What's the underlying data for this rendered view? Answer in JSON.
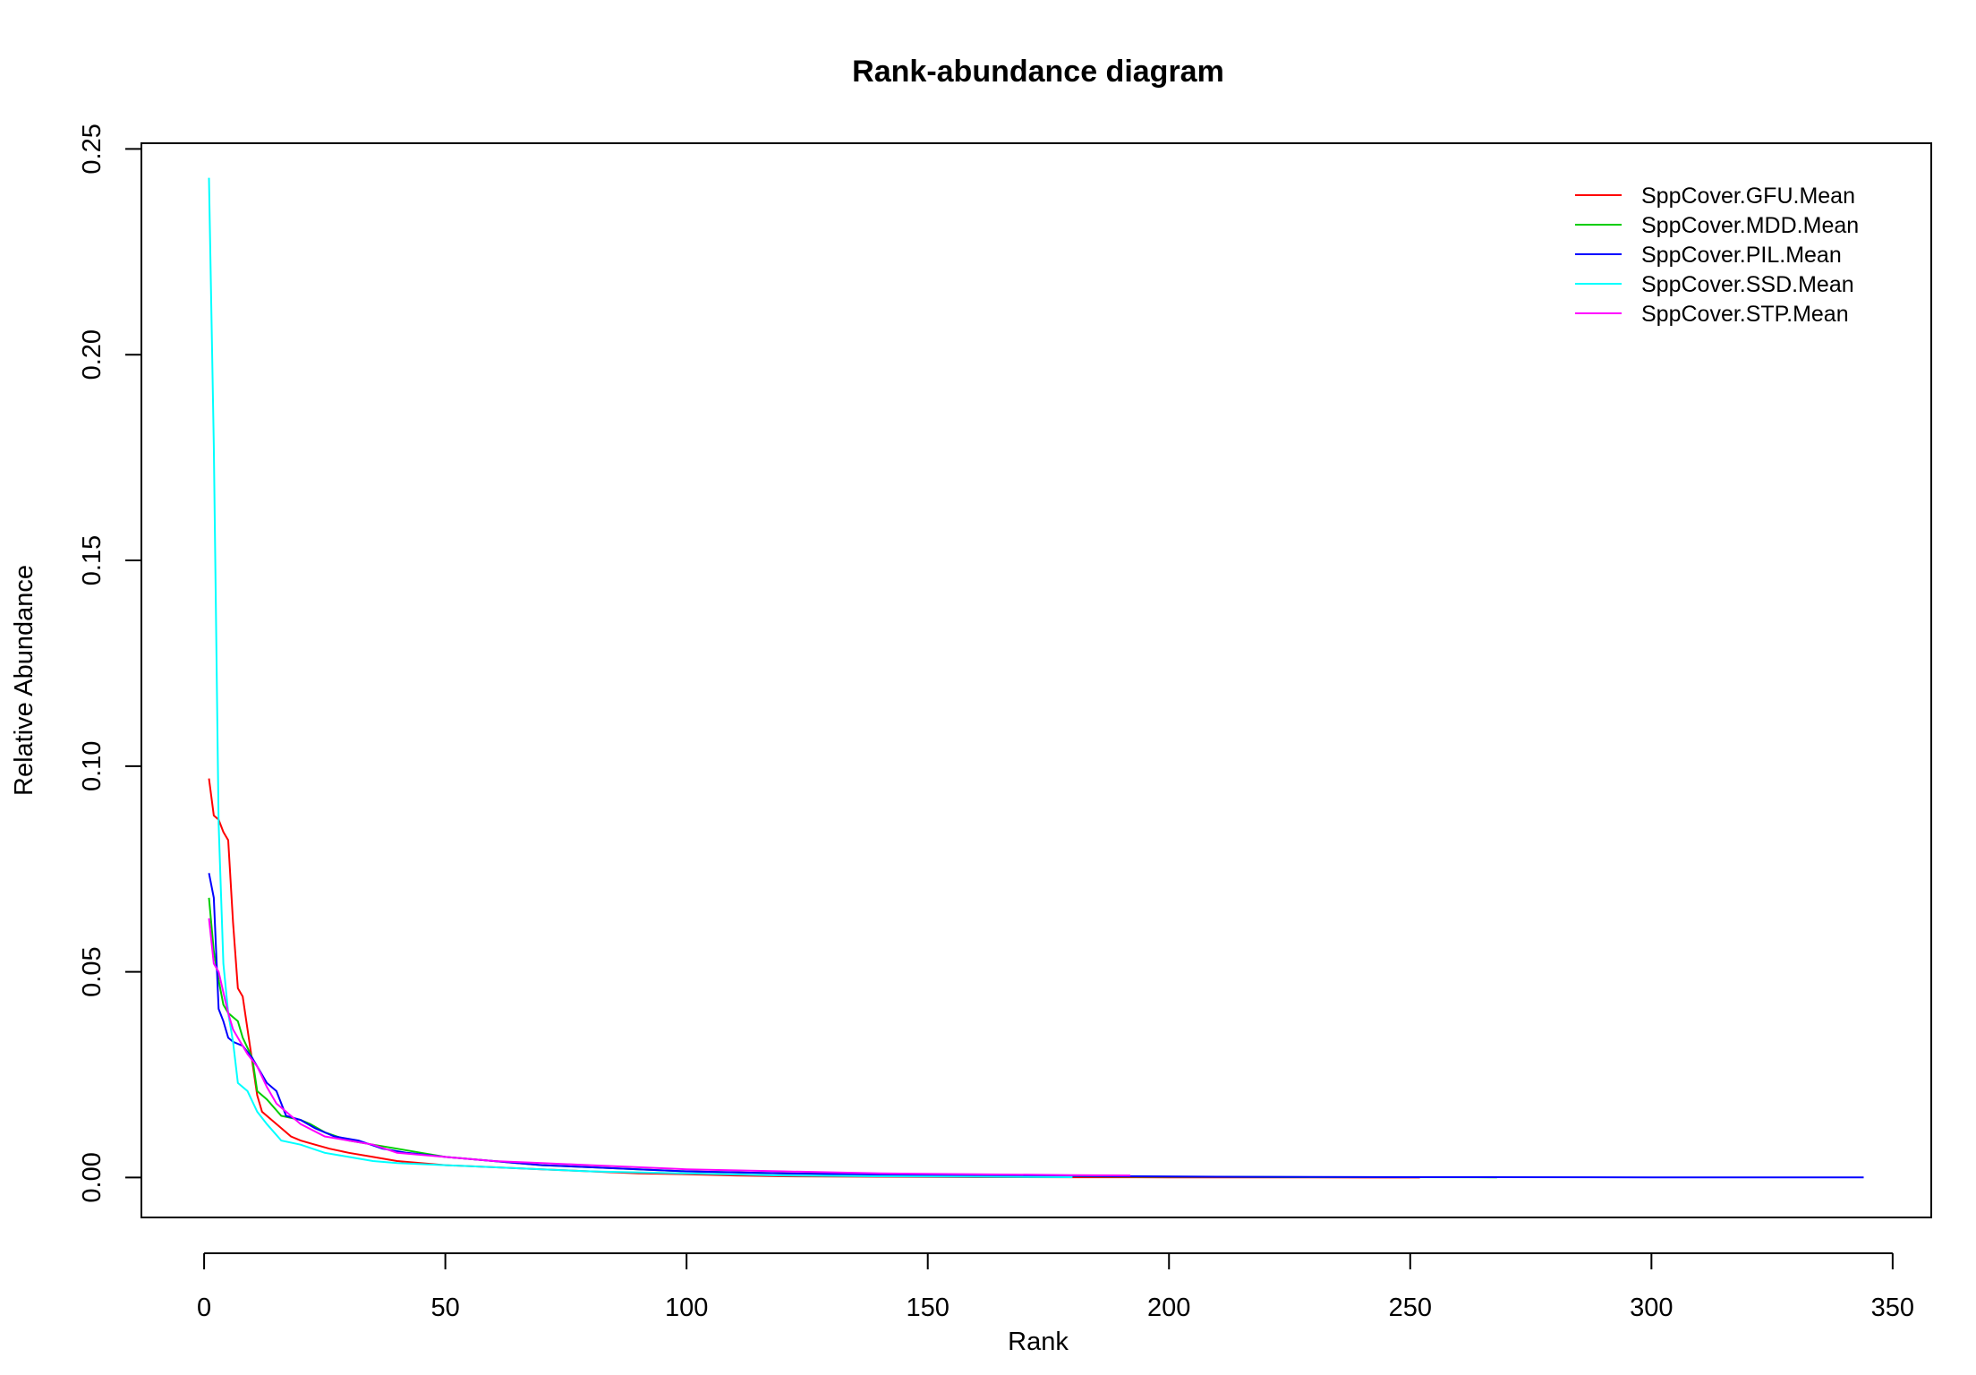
{
  "chart_data": {
    "type": "line",
    "title": "Rank-abundance diagram",
    "xlabel": "Rank",
    "ylabel": "Relative Abundance",
    "xlim": [
      -13,
      358
    ],
    "ylim": [
      -0.0097,
      0.2514
    ],
    "x_ticks": [
      "0",
      "50",
      "100",
      "150",
      "200",
      "250",
      "300",
      "350"
    ],
    "y_ticks": [
      "0.00",
      "0.05",
      "0.10",
      "0.15",
      "0.20",
      "0.25"
    ],
    "grid": false,
    "legend_position": "top-right",
    "series": [
      {
        "name": "SppCover.GFU.Mean",
        "color": "#ff0000",
        "points": [
          [
            1,
            0.097
          ],
          [
            2,
            0.088
          ],
          [
            3,
            0.087
          ],
          [
            4,
            0.084
          ],
          [
            5,
            0.082
          ],
          [
            6,
            0.062
          ],
          [
            7,
            0.046
          ],
          [
            8,
            0.044
          ],
          [
            9,
            0.036
          ],
          [
            10,
            0.028
          ],
          [
            11,
            0.02
          ],
          [
            12,
            0.016
          ],
          [
            14,
            0.014
          ],
          [
            16,
            0.012
          ],
          [
            18,
            0.01
          ],
          [
            20,
            0.009
          ],
          [
            23,
            0.008
          ],
          [
            26,
            0.007
          ],
          [
            30,
            0.006
          ],
          [
            35,
            0.005
          ],
          [
            40,
            0.004
          ],
          [
            50,
            0.003
          ],
          [
            60,
            0.0025
          ],
          [
            70,
            0.002
          ],
          [
            80,
            0.0015
          ],
          [
            90,
            0.001
          ],
          [
            100,
            0.0008
          ],
          [
            110,
            0.0005
          ],
          [
            120,
            0.0003
          ],
          [
            140,
            0.0002
          ],
          [
            160,
            0.0001
          ],
          [
            180,
            8e-05
          ],
          [
            200,
            5e-05
          ],
          [
            230,
            2e-05
          ],
          [
            252,
            1e-05
          ]
        ]
      },
      {
        "name": "SppCover.MDD.Mean",
        "color": "#00cd00",
        "points": [
          [
            1,
            0.068
          ],
          [
            2,
            0.055
          ],
          [
            3,
            0.048
          ],
          [
            4,
            0.042
          ],
          [
            5,
            0.04
          ],
          [
            6,
            0.039
          ],
          [
            7,
            0.038
          ],
          [
            8,
            0.034
          ],
          [
            10,
            0.029
          ],
          [
            11,
            0.021
          ],
          [
            13,
            0.019
          ],
          [
            16,
            0.015
          ],
          [
            20,
            0.014
          ],
          [
            22,
            0.013
          ],
          [
            25,
            0.011
          ],
          [
            30,
            0.009
          ],
          [
            35,
            0.008
          ],
          [
            40,
            0.007
          ],
          [
            45,
            0.006
          ],
          [
            50,
            0.005
          ],
          [
            60,
            0.004
          ],
          [
            70,
            0.003
          ],
          [
            80,
            0.0025
          ],
          [
            90,
            0.002
          ],
          [
            100,
            0.0015
          ],
          [
            120,
            0.001
          ],
          [
            140,
            0.0008
          ],
          [
            160,
            0.0005
          ],
          [
            180,
            0.0003
          ],
          [
            200,
            0.0002
          ],
          [
            230,
            0.0001
          ],
          [
            268,
            5e-05
          ]
        ]
      },
      {
        "name": "SppCover.PIL.Mean",
        "color": "#0000ff",
        "points": [
          [
            1,
            0.074
          ],
          [
            2,
            0.068
          ],
          [
            3,
            0.041
          ],
          [
            4,
            0.038
          ],
          [
            5,
            0.034
          ],
          [
            6,
            0.033
          ],
          [
            8,
            0.032
          ],
          [
            10,
            0.029
          ],
          [
            12,
            0.025
          ],
          [
            13,
            0.023
          ],
          [
            15,
            0.021
          ],
          [
            17,
            0.015
          ],
          [
            20,
            0.014
          ],
          [
            23,
            0.012
          ],
          [
            27,
            0.01
          ],
          [
            32,
            0.009
          ],
          [
            37,
            0.007
          ],
          [
            42,
            0.006
          ],
          [
            50,
            0.005
          ],
          [
            60,
            0.004
          ],
          [
            70,
            0.003
          ],
          [
            80,
            0.0025
          ],
          [
            90,
            0.002
          ],
          [
            100,
            0.0015
          ],
          [
            120,
            0.001
          ],
          [
            150,
            0.0006
          ],
          [
            180,
            0.0004
          ],
          [
            210,
            0.0002
          ],
          [
            250,
            0.0001
          ],
          [
            300,
            5e-05
          ],
          [
            344,
            2e-05
          ]
        ]
      },
      {
        "name": "SppCover.SSD.Mean",
        "color": "#00ffff",
        "points": [
          [
            1,
            0.243
          ],
          [
            2,
            0.178
          ],
          [
            3,
            0.086
          ],
          [
            4,
            0.052
          ],
          [
            5,
            0.04
          ],
          [
            6,
            0.033
          ],
          [
            7,
            0.023
          ],
          [
            9,
            0.021
          ],
          [
            11,
            0.016
          ],
          [
            13,
            0.013
          ],
          [
            16,
            0.009
          ],
          [
            20,
            0.008
          ],
          [
            25,
            0.006
          ],
          [
            30,
            0.005
          ],
          [
            35,
            0.004
          ],
          [
            40,
            0.0035
          ],
          [
            50,
            0.003
          ],
          [
            60,
            0.0025
          ],
          [
            70,
            0.002
          ],
          [
            80,
            0.0015
          ],
          [
            100,
            0.001
          ],
          [
            120,
            0.0005
          ],
          [
            140,
            0.0003
          ],
          [
            160,
            0.0002
          ],
          [
            180,
            0.0001
          ]
        ]
      },
      {
        "name": "SppCover.STP.Mean",
        "color": "#ff00ff",
        "points": [
          [
            1,
            0.063
          ],
          [
            2,
            0.052
          ],
          [
            3,
            0.05
          ],
          [
            4,
            0.045
          ],
          [
            5,
            0.04
          ],
          [
            6,
            0.036
          ],
          [
            7,
            0.034
          ],
          [
            9,
            0.03
          ],
          [
            11,
            0.027
          ],
          [
            13,
            0.022
          ],
          [
            15,
            0.018
          ],
          [
            17,
            0.016
          ],
          [
            20,
            0.013
          ],
          [
            25,
            0.01
          ],
          [
            30,
            0.009
          ],
          [
            35,
            0.008
          ],
          [
            40,
            0.006
          ],
          [
            45,
            0.0055
          ],
          [
            50,
            0.005
          ],
          [
            60,
            0.004
          ],
          [
            70,
            0.0035
          ],
          [
            80,
            0.003
          ],
          [
            90,
            0.0025
          ],
          [
            100,
            0.002
          ],
          [
            120,
            0.0015
          ],
          [
            140,
            0.001
          ],
          [
            160,
            0.0008
          ],
          [
            180,
            0.0006
          ],
          [
            192,
            0.0005
          ]
        ]
      }
    ]
  }
}
